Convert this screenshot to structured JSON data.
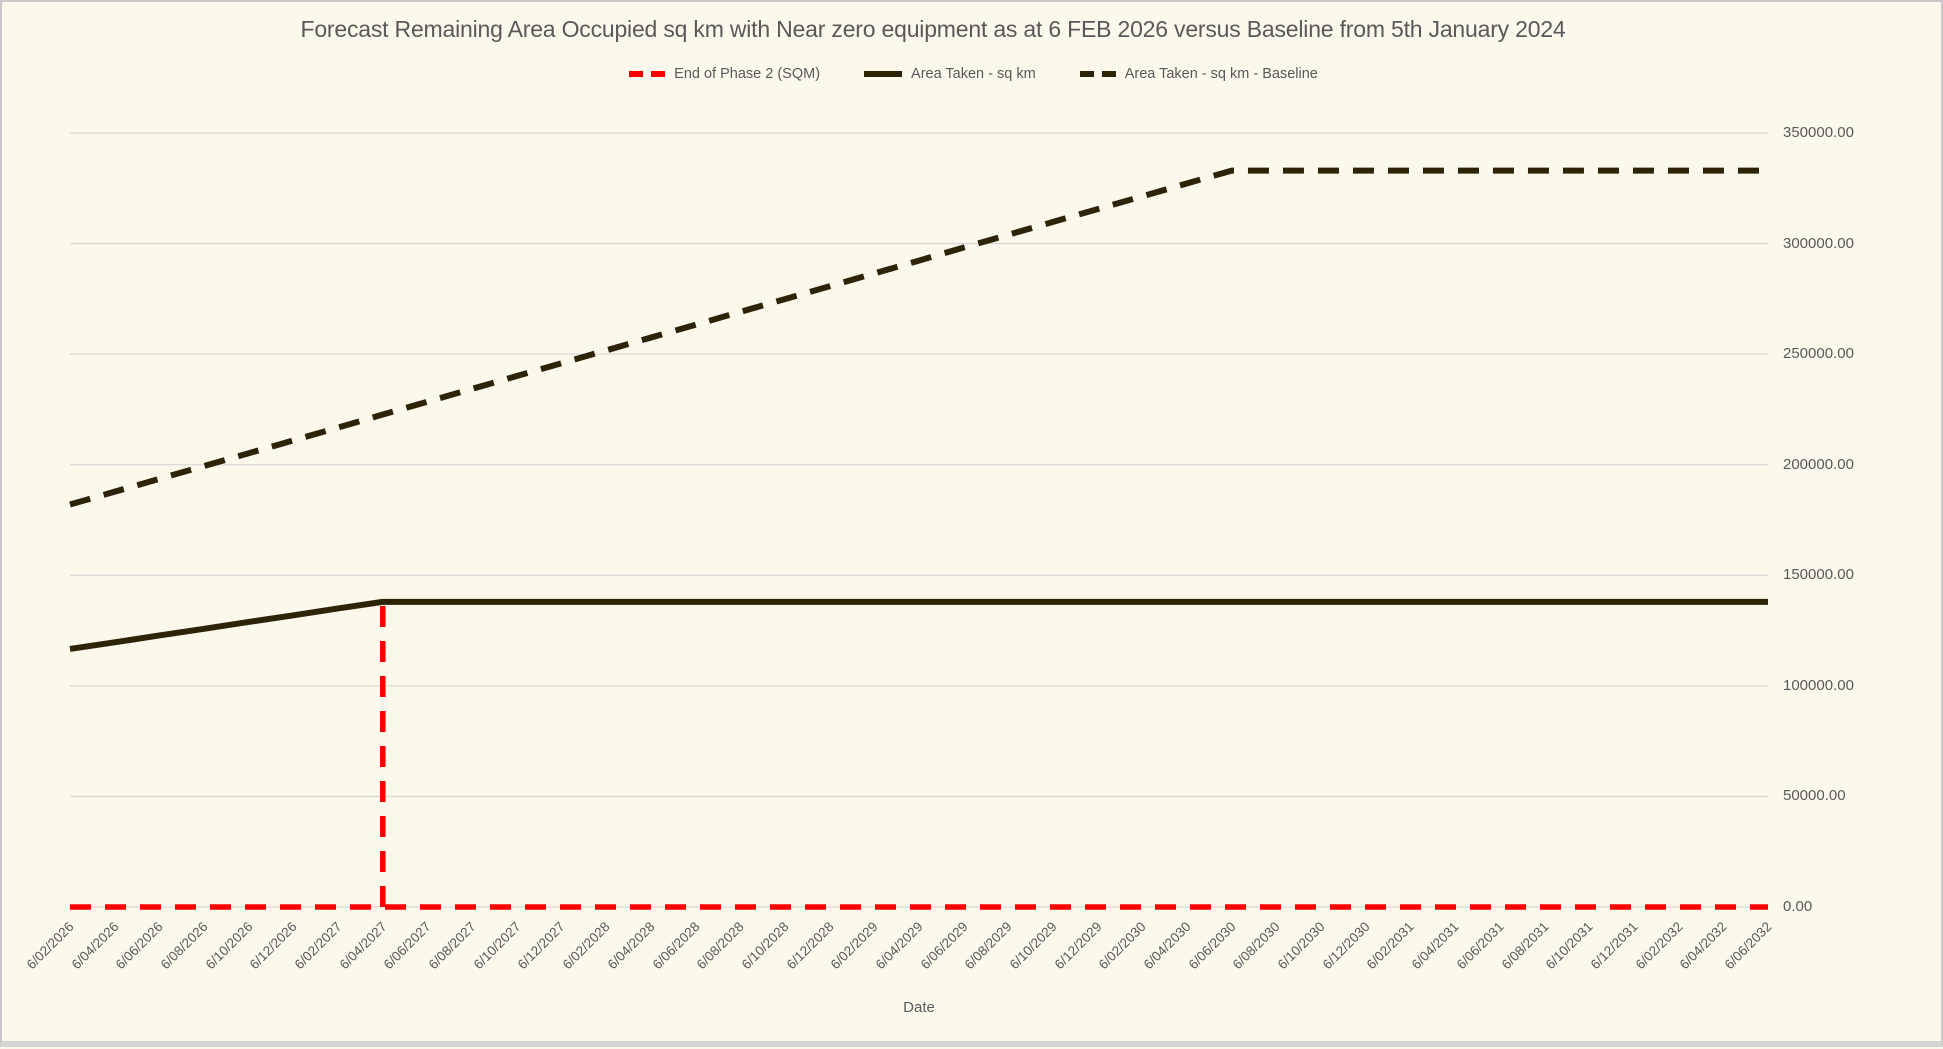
{
  "title": "Forecast Remaining Area Occupied sq km with Near zero equipment as at 6 FEB 2026 versus Baseline from 5th January 2024",
  "xlabel": "Date",
  "colors": {
    "background": "#FDF8EC",
    "grid": "#D9D9D9",
    "text": "#595959",
    "red": "#FB0000",
    "dark": "#2D2408"
  },
  "legend": [
    {
      "label": "End of Phase 2 (SQM)",
      "color": "#FB0000",
      "style": "dashed"
    },
    {
      "label": "Area Taken - sq km",
      "color": "#2D2408",
      "style": "solid"
    },
    {
      "label": "Area Taken - sq km - Baseline",
      "color": "#2D2408",
      "style": "dashed"
    }
  ],
  "chart_data": {
    "type": "line",
    "title": "Forecast Remaining Area Occupied sq km with Near zero equipment as at 6 FEB 2026 versus Baseline from 5th January 2024",
    "xlabel": "Date",
    "ylabel": "",
    "ylim": [
      0,
      350000
    ],
    "grid": true,
    "legend_position": "top",
    "y_tick_values": [
      0,
      50000,
      100000,
      150000,
      200000,
      250000,
      300000,
      350000
    ],
    "y_tick_labels": [
      "0.00",
      "50000.00",
      "100000.00",
      "150000.00",
      "200000.00",
      "250000.00",
      "300000.00",
      "350000.00"
    ],
    "categories": [
      "6/02/2026",
      "6/04/2026",
      "6/06/2026",
      "6/08/2026",
      "6/10/2026",
      "6/12/2026",
      "6/02/2027",
      "6/04/2027",
      "6/06/2027",
      "6/08/2027",
      "6/10/2027",
      "6/12/2027",
      "6/02/2028",
      "6/04/2028",
      "6/06/2028",
      "6/08/2028",
      "6/10/2028",
      "6/12/2028",
      "6/02/2029",
      "6/04/2029",
      "6/06/2029",
      "6/08/2029",
      "6/10/2029",
      "6/12/2029",
      "6/02/2030",
      "6/04/2030",
      "6/06/2030",
      "6/08/2030",
      "6/10/2030",
      "6/12/2030",
      "6/02/2031",
      "6/04/2031",
      "6/06/2031",
      "6/08/2031",
      "6/10/2031",
      "6/12/2031",
      "6/02/2032",
      "6/04/2032",
      "6/06/2032"
    ],
    "series": [
      {
        "name": "End of Phase 2 (SQM)",
        "color": "#FB0000",
        "style": "dashed",
        "values": [
          0,
          0,
          0,
          0,
          0,
          0,
          0,
          0,
          0,
          0,
          0,
          0,
          0,
          0,
          0,
          0,
          0,
          0,
          0,
          0,
          0,
          0,
          0,
          0,
          0,
          0,
          0,
          0,
          0,
          0,
          0,
          0,
          0,
          0,
          0,
          0,
          0,
          0,
          0
        ],
        "spike": {
          "category": "6/04/2027",
          "value": 138000
        }
      },
      {
        "name": "Area Taken - sq km",
        "color": "#2D2408",
        "style": "solid",
        "values": [
          116700,
          119700,
          122800,
          125800,
          128900,
          131900,
          135000,
          138000,
          138000,
          138000,
          138000,
          138000,
          138000,
          138000,
          138000,
          138000,
          138000,
          138000,
          138000,
          138000,
          138000,
          138000,
          138000,
          138000,
          138000,
          138000,
          138000,
          138000,
          138000,
          138000,
          138000,
          138000,
          138000,
          138000,
          138000,
          138000,
          138000,
          138000,
          138000
        ]
      },
      {
        "name": "Area Taken - sq km - Baseline",
        "color": "#2D2408",
        "style": "dashed",
        "values": [
          182000,
          187800,
          193600,
          199400,
          205200,
          211000,
          216800,
          222700,
          228500,
          234300,
          240100,
          245900,
          251700,
          257500,
          263300,
          269100,
          274900,
          280700,
          286500,
          292300,
          298200,
          304000,
          309800,
          315600,
          321400,
          327200,
          333000,
          333000,
          333000,
          333000,
          333000,
          333000,
          333000,
          333000,
          333000,
          333000,
          333000,
          333000,
          333000
        ]
      }
    ]
  }
}
